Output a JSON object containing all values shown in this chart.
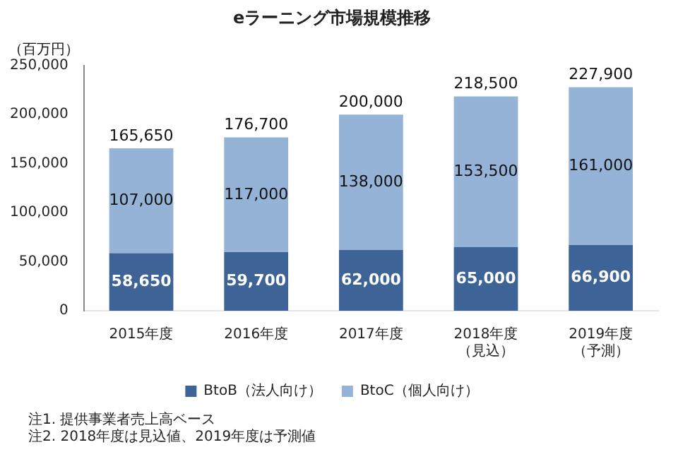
{
  "chart_data": {
    "type": "bar",
    "stacked": true,
    "title": "eラーニング市場規模推移",
    "ylabel": "（百万円）",
    "categories": [
      "2015年度",
      "2016年度",
      "2017年度",
      "2018年度（見込）",
      "2019年度（予測）"
    ],
    "series": [
      {
        "name": "BtoB（法人向け）",
        "color": "#3e6497",
        "values": [
          58650,
          59700,
          62000,
          65000,
          66900
        ],
        "value_labels": [
          "58,650",
          "59,700",
          "62,000",
          "65,000",
          "66,900"
        ]
      },
      {
        "name": "BtoC（個人向け）",
        "color": "#95b3d7",
        "values": [
          107000,
          117000,
          138000,
          153500,
          161000
        ],
        "value_labels": [
          "107,000",
          "117,000",
          "138,000",
          "153,500",
          "161,000"
        ]
      }
    ],
    "totals": [
      "165,650",
      "176,700",
      "200,000",
      "218,500",
      "227,900"
    ],
    "ylim": [
      0,
      250000
    ],
    "yticks": [
      {
        "value": 0,
        "label": "0"
      },
      {
        "value": 50000,
        "label": "50,000"
      },
      {
        "value": 100000,
        "label": "100,000"
      },
      {
        "value": 150000,
        "label": "150,000"
      },
      {
        "value": 200000,
        "label": "200,000"
      },
      {
        "value": 250000,
        "label": "250,000"
      }
    ],
    "grid": false,
    "legend": "bottom",
    "annotations": [
      "注1. 提供事業者売上高ベース",
      "注2. 2018年度は見込値、2019年度は予測値"
    ]
  }
}
